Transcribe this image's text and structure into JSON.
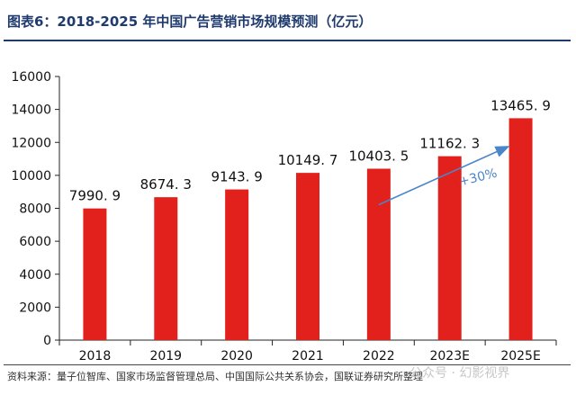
{
  "header": {
    "title": "图表6：2018-2025 年中国广告营销市场规模预测（亿元）"
  },
  "footer": {
    "source": "资料来源：量子位智库、国家市场监督管理总局、中国国际公共关系协会，国联证券研究所整理",
    "watermark": "公众号 · 幻影视界"
  },
  "chart_data": {
    "type": "bar",
    "title": "2018-2025 年中国广告营销市场规模预测（亿元）",
    "categories": [
      "2018",
      "2019",
      "2020",
      "2021",
      "2022",
      "2023E",
      "2025E"
    ],
    "values": [
      7990.9,
      8674.3,
      9143.9,
      10149.7,
      10403.5,
      11162.3,
      13465.9
    ],
    "value_labels": [
      "7990. 9",
      "8674. 3",
      "9143. 9",
      "10149. 7",
      "10403. 5",
      "11162. 3",
      "13465. 9"
    ],
    "ylim": [
      0,
      16000
    ],
    "yticks": [
      0,
      2000,
      4000,
      6000,
      8000,
      10000,
      12000,
      14000,
      16000
    ],
    "xlabel": "",
    "ylabel": "",
    "grid": false,
    "bar_color": "#e3211c",
    "annotation": {
      "text": "+30%",
      "color": "#4a86c9",
      "from_category": "2022",
      "to_category": "2025E"
    }
  }
}
